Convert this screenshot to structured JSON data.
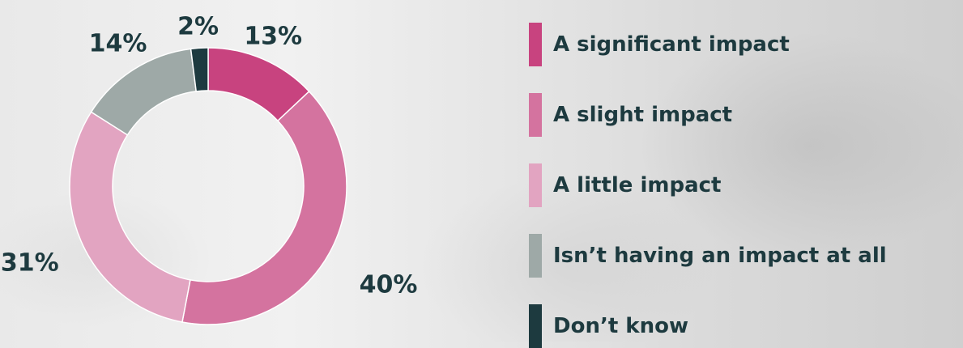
{
  "chart_data": {
    "type": "pie",
    "categories": [
      "A significant impact",
      "A slight impact",
      "A little impact",
      "Isn’t having an impact at all",
      "Don’t know"
    ],
    "values": [
      13,
      40,
      31,
      14,
      2
    ],
    "value_labels": [
      "13%",
      "40%",
      "31%",
      "14%",
      "2%"
    ],
    "colors": [
      "#c8437f",
      "#d4739f",
      "#e2a4c1",
      "#9ea9a7",
      "#1d3a3f"
    ],
    "donut": true,
    "legend_position": "right"
  }
}
